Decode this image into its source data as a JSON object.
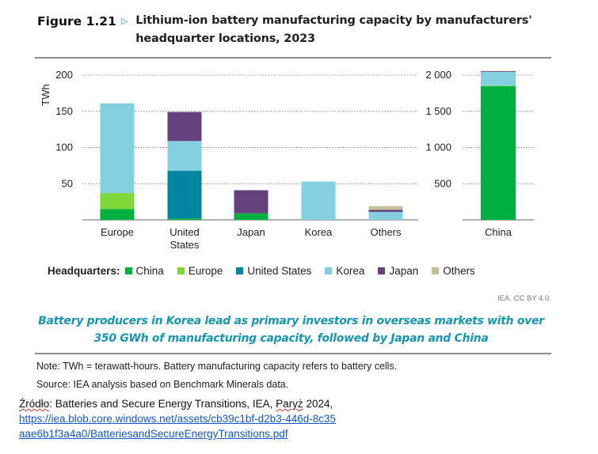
{
  "figure": {
    "number": "Figure 1.21",
    "marker": "▷",
    "title_line1": "Lithium-ion battery manufacturing capacity by manufacturers'",
    "title_line2": "headquarter locations, 2023"
  },
  "chart_data": {
    "type": "bar",
    "stacked": true,
    "title": "Lithium-ion battery manufacturing capacity by manufacturers' headquarter locations, 2023",
    "ylabel": "TWh",
    "panels": [
      {
        "name": "left",
        "categories": [
          [
            "Europe"
          ],
          [
            "United",
            "States"
          ],
          [
            "Japan"
          ],
          [
            "Korea"
          ],
          [
            "Others"
          ]
        ],
        "category_labels": [
          "Europe",
          "United States",
          "Japan",
          "Korea",
          "Others"
        ],
        "ylim": [
          0,
          200
        ],
        "yticks": [
          50,
          100,
          150,
          200
        ],
        "ytick_labels": [
          "50",
          "100",
          "150",
          "200"
        ],
        "series": [
          {
            "name": "China",
            "values": [
              15,
              2,
              9,
              0,
              0
            ]
          },
          {
            "name": "Europe",
            "values": [
              22,
              0,
              0,
              0,
              0
            ]
          },
          {
            "name": "United States",
            "values": [
              0,
              66,
              0,
              0,
              0
            ]
          },
          {
            "name": "Korea",
            "values": [
              124,
              41,
              0,
              53,
              11
            ]
          },
          {
            "name": "Japan",
            "values": [
              0,
              40,
              32,
              0,
              3
            ]
          },
          {
            "name": "Others",
            "values": [
              0,
              0,
              0,
              0,
              5
            ]
          }
        ]
      },
      {
        "name": "right",
        "categories": [
          [
            "China"
          ]
        ],
        "category_labels": [
          "China"
        ],
        "ylim": [
          0,
          2000
        ],
        "yticks": [
          500,
          1000,
          1500,
          2000
        ],
        "ytick_labels": [
          "500",
          "1 000",
          "1 500",
          "2 000"
        ],
        "series": [
          {
            "name": "China",
            "values": [
              1850
            ]
          },
          {
            "name": "Europe",
            "values": [
              5
            ]
          },
          {
            "name": "United States",
            "values": [
              0
            ]
          },
          {
            "name": "Korea",
            "values": [
              190
            ]
          },
          {
            "name": "Japan",
            "values": [
              10
            ]
          },
          {
            "name": "Others",
            "values": [
              5
            ]
          }
        ]
      }
    ],
    "grid": "horizontal-dotted",
    "legend": {
      "title": "Headquarters:",
      "placement": "bottom",
      "entries": [
        "China",
        "Europe",
        "United States",
        "Korea",
        "Japan",
        "Others"
      ]
    },
    "colors": {
      "China": "#00b140",
      "Europe": "#7ed638",
      "United States": "#00849f",
      "Korea": "#84cfe0",
      "Japan": "#65417d",
      "Others": "#c5bf95"
    }
  },
  "credit": "IEA. CC BY 4.0.",
  "caption_line1": "Battery producers in Korea lead as primary investors in overseas markets with over",
  "caption_line2": "350 GWh of manufacturing capacity, followed by Japan and China",
  "note": "Note: TWh = terawatt-hours. Battery manufacturing capacity refers to battery cells.",
  "source": "Source: IEA analysis based on Benchmark Minerals data.",
  "citation": {
    "label": "Źródło",
    "text_after_label": ": Batteries and Secure Energy Transitions, IEA, ",
    "place": "Paryż",
    "year": " 2024,",
    "link_line1": "https://iea.blob.core.windows.net/assets/cb39c1bf-d2b3-446d-8c35",
    "link_line2": "aae6b1f3a4a0/BatteriesandSecureEnergyTransitions.pdf"
  }
}
